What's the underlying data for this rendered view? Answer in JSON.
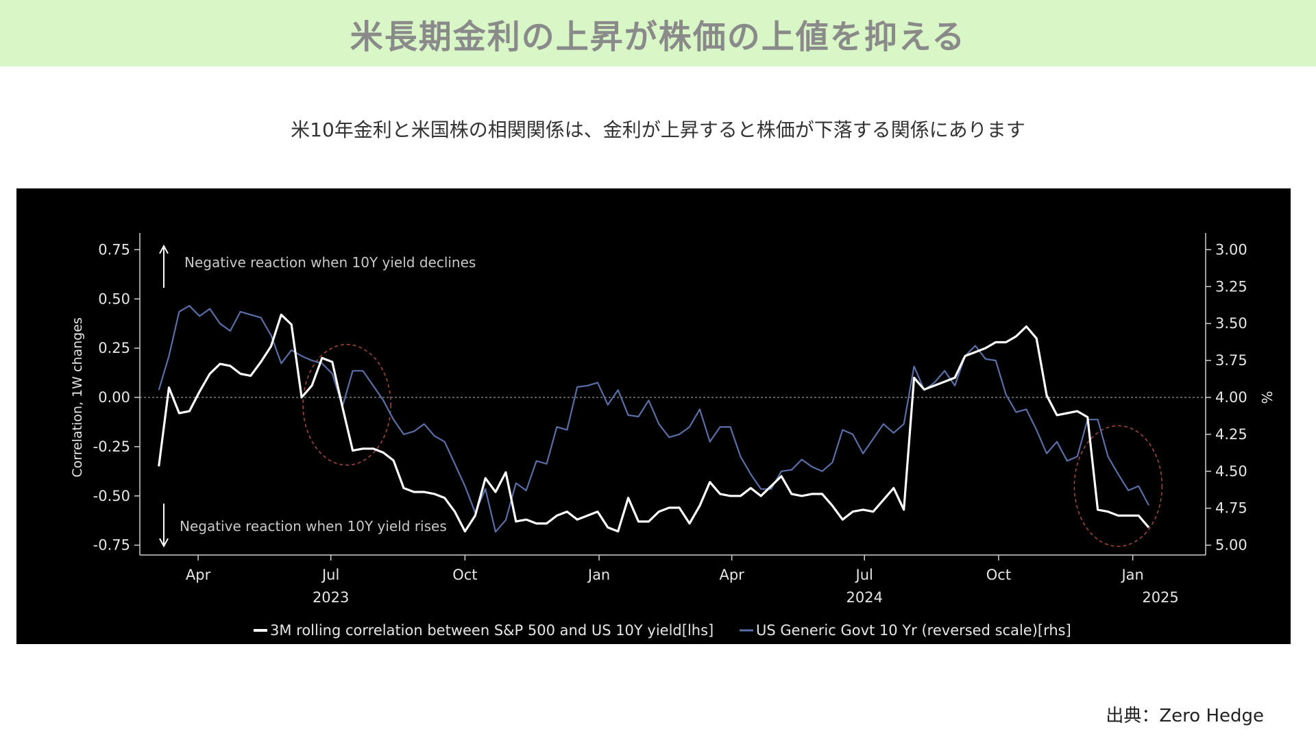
{
  "header": {
    "title": "米長期金利の上昇が株価の上値を抑える"
  },
  "subtitle": "米10年金利と米国株の相関関係は、金利が上昇すると株価が下落する関係にあります",
  "source": "出典：Zero Hedge",
  "colors": {
    "banner_bg": "#d9f7c6",
    "title_text": "#8a8a8a",
    "chart_bg": "#000000",
    "correlation_line": "#ffffff",
    "yield_line": "#5a6ea8",
    "highlight_circle": "#a0443a"
  },
  "chart_data": {
    "type": "line",
    "ylabel": "Correlation, 1W changes",
    "y2label": "%",
    "ylim": [
      -0.8,
      0.8
    ],
    "y2lim": [
      3.0,
      5.0
    ],
    "y2_reversed": true,
    "yticks": [
      "0.75",
      "0.50",
      "0.25",
      "0.00",
      "-0.25",
      "-0.50",
      "-0.75"
    ],
    "y2ticks": [
      "3.00",
      "3.25",
      "3.50",
      "3.75",
      "4.00",
      "4.25",
      "4.50",
      "4.75",
      "5.00"
    ],
    "xticks": [
      {
        "label": "Apr",
        "date": "2023-04-01"
      },
      {
        "label": "Jul",
        "date": "2023-07-01"
      },
      {
        "label": "Oct",
        "date": "2023-10-01"
      },
      {
        "label": "Jan",
        "date": "2024-01-01"
      },
      {
        "label": "Apr",
        "date": "2024-04-01"
      },
      {
        "label": "Jul",
        "date": "2024-07-01"
      },
      {
        "label": "Oct",
        "date": "2024-10-01"
      },
      {
        "label": "Jan",
        "date": "2025-01-01"
      }
    ],
    "year_labels": [
      {
        "label": "2023",
        "date": "2023-07-01"
      },
      {
        "label": "2024",
        "date": "2024-07-01"
      },
      {
        "label": "2025",
        "date": "2025-01-20"
      }
    ],
    "annotations": {
      "top": "Negative reaction when 10Y yield declines",
      "bottom": "Negative reaction when 10Y yield rises"
    },
    "highlights": [
      {
        "date": "2023-07-12",
        "center_y": 4.05
      },
      {
        "date": "2024-12-22",
        "center_y": 4.6
      }
    ],
    "legend": {
      "position": "bottom-center",
      "items": [
        "3M rolling correlation between S&P 500 and US 10Y yield[lhs]",
        "US Generic Govt 10 Yr (reversed scale)[rhs]"
      ]
    },
    "series": [
      {
        "name": "3M rolling correlation between S&P 500 and US 10Y yield[lhs]",
        "axis": "left",
        "points": [
          [
            "2023-03-05",
            -0.35
          ],
          [
            "2023-03-12",
            0.05
          ],
          [
            "2023-03-19",
            -0.08
          ],
          [
            "2023-03-26",
            -0.07
          ],
          [
            "2023-04-02",
            0.03
          ],
          [
            "2023-04-09",
            0.12
          ],
          [
            "2023-04-16",
            0.17
          ],
          [
            "2023-04-23",
            0.16
          ],
          [
            "2023-04-30",
            0.12
          ],
          [
            "2023-05-07",
            0.11
          ],
          [
            "2023-05-14",
            0.18
          ],
          [
            "2023-05-21",
            0.26
          ],
          [
            "2023-05-28",
            0.42
          ],
          [
            "2023-06-04",
            0.37
          ],
          [
            "2023-06-11",
            0.0
          ],
          [
            "2023-06-18",
            0.06
          ],
          [
            "2023-06-25",
            0.2
          ],
          [
            "2023-07-02",
            0.18
          ],
          [
            "2023-07-09",
            -0.05
          ],
          [
            "2023-07-16",
            -0.27
          ],
          [
            "2023-07-23",
            -0.26
          ],
          [
            "2023-07-30",
            -0.26
          ],
          [
            "2023-08-06",
            -0.28
          ],
          [
            "2023-08-13",
            -0.32
          ],
          [
            "2023-08-20",
            -0.46
          ],
          [
            "2023-08-27",
            -0.48
          ],
          [
            "2023-09-03",
            -0.48
          ],
          [
            "2023-09-10",
            -0.49
          ],
          [
            "2023-09-17",
            -0.51
          ],
          [
            "2023-09-24",
            -0.58
          ],
          [
            "2023-10-01",
            -0.68
          ],
          [
            "2023-10-08",
            -0.6
          ],
          [
            "2023-10-15",
            -0.41
          ],
          [
            "2023-10-22",
            -0.48
          ],
          [
            "2023-10-29",
            -0.38
          ],
          [
            "2023-11-05",
            -0.63
          ],
          [
            "2023-11-12",
            -0.62
          ],
          [
            "2023-11-19",
            -0.64
          ],
          [
            "2023-11-26",
            -0.64
          ],
          [
            "2023-12-03",
            -0.6
          ],
          [
            "2023-12-10",
            -0.58
          ],
          [
            "2023-12-17",
            -0.62
          ],
          [
            "2023-12-24",
            -0.6
          ],
          [
            "2023-12-31",
            -0.58
          ],
          [
            "2024-01-07",
            -0.66
          ],
          [
            "2024-01-14",
            -0.68
          ],
          [
            "2024-01-21",
            -0.51
          ],
          [
            "2024-01-28",
            -0.63
          ],
          [
            "2024-02-04",
            -0.63
          ],
          [
            "2024-02-11",
            -0.58
          ],
          [
            "2024-02-18",
            -0.56
          ],
          [
            "2024-02-25",
            -0.56
          ],
          [
            "2024-03-03",
            -0.64
          ],
          [
            "2024-03-10",
            -0.55
          ],
          [
            "2024-03-17",
            -0.43
          ],
          [
            "2024-03-24",
            -0.49
          ],
          [
            "2024-03-31",
            -0.5
          ],
          [
            "2024-04-07",
            -0.5
          ],
          [
            "2024-04-14",
            -0.46
          ],
          [
            "2024-04-21",
            -0.5
          ],
          [
            "2024-04-28",
            -0.45
          ],
          [
            "2024-05-05",
            -0.4
          ],
          [
            "2024-05-12",
            -0.49
          ],
          [
            "2024-05-19",
            -0.5
          ],
          [
            "2024-05-26",
            -0.49
          ],
          [
            "2024-06-02",
            -0.49
          ],
          [
            "2024-06-09",
            -0.55
          ],
          [
            "2024-06-16",
            -0.62
          ],
          [
            "2024-06-23",
            -0.58
          ],
          [
            "2024-06-30",
            -0.57
          ],
          [
            "2024-07-07",
            -0.58
          ],
          [
            "2024-07-14",
            -0.52
          ],
          [
            "2024-07-21",
            -0.46
          ],
          [
            "2024-07-28",
            -0.57
          ],
          [
            "2024-08-04",
            0.1
          ],
          [
            "2024-08-11",
            0.04
          ],
          [
            "2024-08-18",
            0.06
          ],
          [
            "2024-08-25",
            0.08
          ],
          [
            "2024-09-01",
            0.1
          ],
          [
            "2024-09-08",
            0.21
          ],
          [
            "2024-09-15",
            0.23
          ],
          [
            "2024-09-22",
            0.25
          ],
          [
            "2024-09-29",
            0.28
          ],
          [
            "2024-10-06",
            0.28
          ],
          [
            "2024-10-13",
            0.31
          ],
          [
            "2024-10-20",
            0.36
          ],
          [
            "2024-10-27",
            0.3
          ],
          [
            "2024-11-03",
            0.01
          ],
          [
            "2024-11-10",
            -0.09
          ],
          [
            "2024-11-17",
            -0.08
          ],
          [
            "2024-11-24",
            -0.07
          ],
          [
            "2024-12-01",
            -0.1
          ],
          [
            "2024-12-08",
            -0.57
          ],
          [
            "2024-12-15",
            -0.58
          ],
          [
            "2024-12-22",
            -0.6
          ],
          [
            "2024-12-29",
            -0.6
          ],
          [
            "2025-01-05",
            -0.6
          ],
          [
            "2025-01-12",
            -0.66
          ]
        ]
      },
      {
        "name": "US Generic Govt 10 Yr (reversed scale)[rhs]",
        "axis": "right",
        "points": [
          [
            "2023-03-05",
            3.95
          ],
          [
            "2023-03-12",
            3.72
          ],
          [
            "2023-03-19",
            3.42
          ],
          [
            "2023-03-26",
            3.38
          ],
          [
            "2023-04-02",
            3.45
          ],
          [
            "2023-04-09",
            3.4
          ],
          [
            "2023-04-16",
            3.5
          ],
          [
            "2023-04-23",
            3.55
          ],
          [
            "2023-04-30",
            3.42
          ],
          [
            "2023-05-07",
            3.44
          ],
          [
            "2023-05-14",
            3.46
          ],
          [
            "2023-05-21",
            3.58
          ],
          [
            "2023-05-28",
            3.77
          ],
          [
            "2023-06-04",
            3.68
          ],
          [
            "2023-06-11",
            3.72
          ],
          [
            "2023-06-18",
            3.75
          ],
          [
            "2023-06-25",
            3.77
          ],
          [
            "2023-07-02",
            3.84
          ],
          [
            "2023-07-09",
            4.06
          ],
          [
            "2023-07-16",
            3.82
          ],
          [
            "2023-07-23",
            3.82
          ],
          [
            "2023-07-30",
            3.92
          ],
          [
            "2023-08-06",
            4.02
          ],
          [
            "2023-08-13",
            4.15
          ],
          [
            "2023-08-20",
            4.25
          ],
          [
            "2023-08-27",
            4.23
          ],
          [
            "2023-09-03",
            4.18
          ],
          [
            "2023-09-10",
            4.26
          ],
          [
            "2023-09-17",
            4.3
          ],
          [
            "2023-09-24",
            4.45
          ],
          [
            "2023-10-01",
            4.6
          ],
          [
            "2023-10-08",
            4.78
          ],
          [
            "2023-10-15",
            4.62
          ],
          [
            "2023-10-22",
            4.91
          ],
          [
            "2023-10-29",
            4.83
          ],
          [
            "2023-11-05",
            4.58
          ],
          [
            "2023-11-12",
            4.63
          ],
          [
            "2023-11-19",
            4.43
          ],
          [
            "2023-11-26",
            4.45
          ],
          [
            "2023-12-03",
            4.2
          ],
          [
            "2023-12-10",
            4.22
          ],
          [
            "2023-12-17",
            3.93
          ],
          [
            "2023-12-24",
            3.92
          ],
          [
            "2023-12-31",
            3.9
          ],
          [
            "2024-01-07",
            4.05
          ],
          [
            "2024-01-14",
            3.95
          ],
          [
            "2024-01-21",
            4.12
          ],
          [
            "2024-01-28",
            4.13
          ],
          [
            "2024-02-04",
            4.02
          ],
          [
            "2024-02-11",
            4.18
          ],
          [
            "2024-02-18",
            4.27
          ],
          [
            "2024-02-25",
            4.25
          ],
          [
            "2024-03-03",
            4.2
          ],
          [
            "2024-03-10",
            4.08
          ],
          [
            "2024-03-17",
            4.3
          ],
          [
            "2024-03-24",
            4.2
          ],
          [
            "2024-03-31",
            4.2
          ],
          [
            "2024-04-07",
            4.4
          ],
          [
            "2024-04-14",
            4.52
          ],
          [
            "2024-04-21",
            4.62
          ],
          [
            "2024-04-28",
            4.62
          ],
          [
            "2024-05-05",
            4.5
          ],
          [
            "2024-05-12",
            4.49
          ],
          [
            "2024-05-19",
            4.42
          ],
          [
            "2024-05-26",
            4.47
          ],
          [
            "2024-06-02",
            4.5
          ],
          [
            "2024-06-09",
            4.44
          ],
          [
            "2024-06-16",
            4.22
          ],
          [
            "2024-06-23",
            4.25
          ],
          [
            "2024-06-30",
            4.38
          ],
          [
            "2024-07-07",
            4.28
          ],
          [
            "2024-07-14",
            4.18
          ],
          [
            "2024-07-21",
            4.24
          ],
          [
            "2024-07-28",
            4.18
          ],
          [
            "2024-08-04",
            3.79
          ],
          [
            "2024-08-11",
            3.95
          ],
          [
            "2024-08-18",
            3.9
          ],
          [
            "2024-08-25",
            3.82
          ],
          [
            "2024-09-01",
            3.92
          ],
          [
            "2024-09-08",
            3.72
          ],
          [
            "2024-09-15",
            3.65
          ],
          [
            "2024-09-22",
            3.74
          ],
          [
            "2024-09-29",
            3.75
          ],
          [
            "2024-10-06",
            3.98
          ],
          [
            "2024-10-13",
            4.1
          ],
          [
            "2024-10-20",
            4.08
          ],
          [
            "2024-10-27",
            4.22
          ],
          [
            "2024-11-03",
            4.38
          ],
          [
            "2024-11-10",
            4.3
          ],
          [
            "2024-11-17",
            4.43
          ],
          [
            "2024-11-24",
            4.4
          ],
          [
            "2024-12-01",
            4.15
          ],
          [
            "2024-12-08",
            4.15
          ],
          [
            "2024-12-15",
            4.4
          ],
          [
            "2024-12-22",
            4.52
          ],
          [
            "2024-12-29",
            4.63
          ],
          [
            "2025-01-05",
            4.6
          ],
          [
            "2025-01-12",
            4.73
          ]
        ]
      }
    ]
  }
}
